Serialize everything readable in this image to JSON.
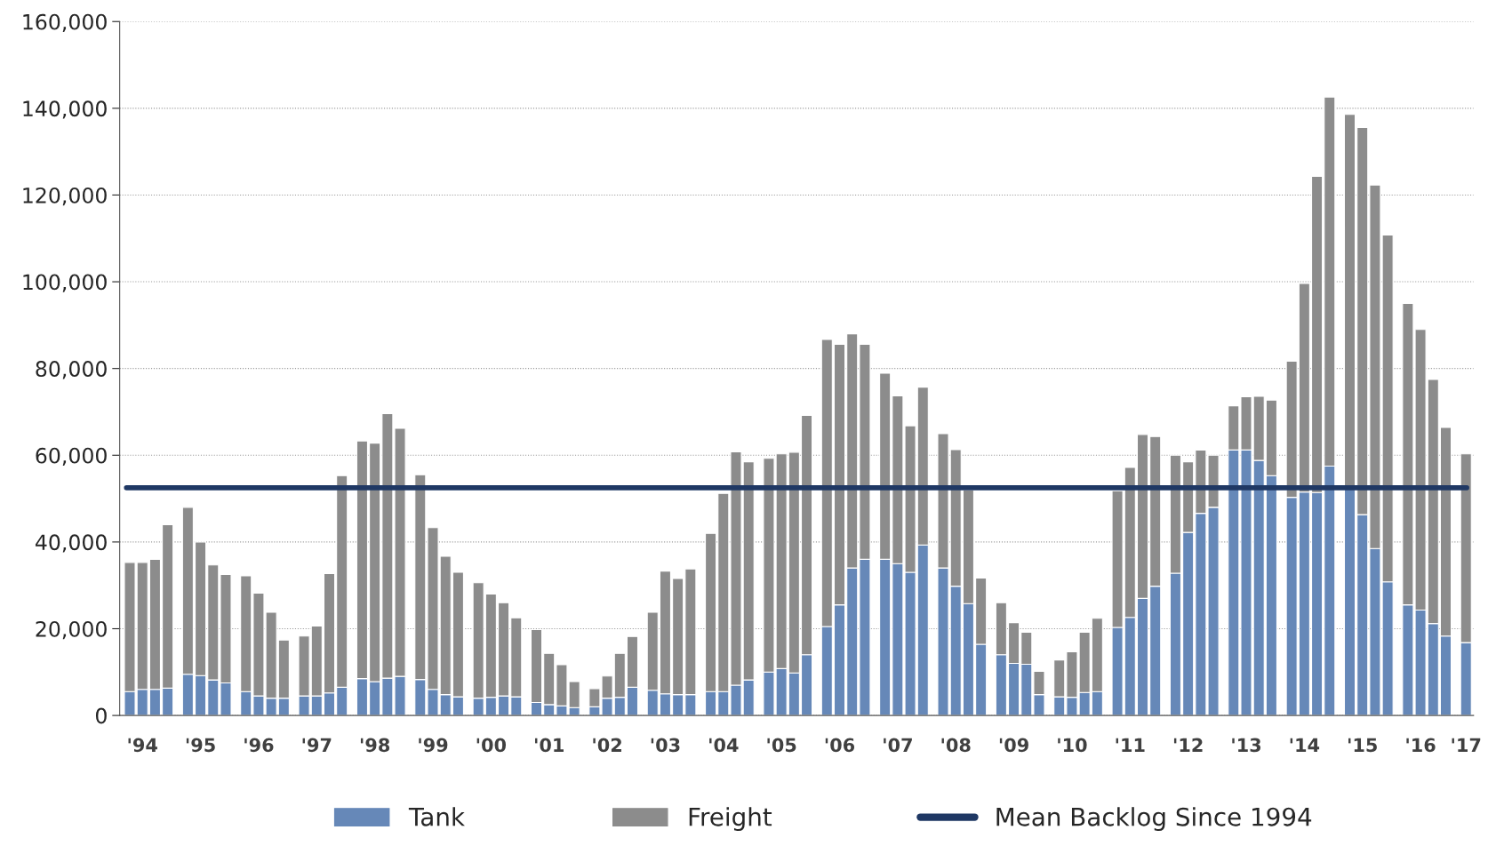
{
  "chart_data": {
    "type": "bar",
    "stacked": true,
    "categories": [
      null,
      "'94",
      null,
      null,
      null,
      "'95",
      null,
      null,
      null,
      "'96",
      null,
      null,
      null,
      "'97",
      null,
      null,
      null,
      "'98",
      null,
      null,
      null,
      "'99",
      null,
      null,
      null,
      "'00",
      null,
      null,
      null,
      "'01",
      null,
      null,
      null,
      "'02",
      null,
      null,
      null,
      "'03",
      null,
      null,
      null,
      "'04",
      null,
      null,
      null,
      "'05",
      null,
      null,
      null,
      "'06",
      null,
      null,
      null,
      "'07",
      null,
      null,
      null,
      "'08",
      null,
      null,
      null,
      "'09",
      null,
      null,
      null,
      "'10",
      null,
      null,
      null,
      "'11",
      null,
      null,
      null,
      "'12",
      null,
      null,
      null,
      "'13",
      null,
      null,
      null,
      "'14",
      null,
      null,
      null,
      "'15",
      null,
      null,
      null,
      "'16",
      null,
      null,
      "'17"
    ],
    "series": [
      {
        "name": "Tank",
        "color": "#6688b8",
        "values": [
          5500,
          6000,
          6000,
          6300,
          9500,
          9200,
          8200,
          7500,
          5500,
          4500,
          4000,
          4000,
          4500,
          4500,
          5200,
          6500,
          8500,
          7800,
          8600,
          9000,
          8300,
          6000,
          4800,
          4300,
          4000,
          4200,
          4500,
          4300,
          3000,
          2500,
          2200,
          1800,
          2000,
          4000,
          4200,
          6500,
          5800,
          5000,
          4800,
          4800,
          5500,
          5500,
          7000,
          8200,
          10000,
          10800,
          9800,
          14000,
          20500,
          25500,
          34000,
          36000,
          36000,
          35000,
          33000,
          39300,
          34000,
          29800,
          25800,
          16400,
          14000,
          12000,
          11800,
          4800,
          4300,
          4200,
          5300,
          5500,
          20300,
          22600,
          27000,
          29800,
          32800,
          42200,
          46600,
          48000,
          61200,
          61200,
          58800,
          55300,
          50300,
          51500,
          51400,
          57500,
          52500,
          46300,
          38500,
          30800,
          25500,
          24300,
          21200,
          18300,
          16800
        ]
      },
      {
        "name": "Freight",
        "color": "#8c8c8c",
        "values": [
          29800,
          29300,
          30000,
          37700,
          38500,
          30800,
          26500,
          25000,
          26700,
          23700,
          19800,
          13400,
          13800,
          16100,
          27500,
          48800,
          54800,
          55000,
          61000,
          57200,
          47200,
          37300,
          31900,
          28700,
          26600,
          23800,
          21500,
          18200,
          16800,
          11800,
          9500,
          6000,
          4200,
          5100,
          10100,
          11700,
          18000,
          28300,
          26800,
          29000,
          36500,
          45700,
          53800,
          50300,
          49300,
          49500,
          50900,
          55200,
          66200,
          60100,
          54000,
          49600,
          42900,
          38700,
          33800,
          36400,
          31000,
          31500,
          26200,
          15300,
          12000,
          9400,
          7400,
          5400,
          8500,
          10500,
          13900,
          16900,
          31500,
          34600,
          37800,
          34500,
          27200,
          16300,
          14600,
          12000,
          10200,
          12300,
          14800,
          17400,
          31400,
          48100,
          72900,
          85100,
          86100,
          89300,
          83800,
          80000,
          69500,
          64700,
          56300,
          48100,
          43500
        ]
      }
    ],
    "ref_lines": [
      {
        "axis": "y",
        "value": 52500,
        "label": "Mean Backlog Since 1994",
        "color": "#1f3864",
        "line_style": "solid"
      }
    ],
    "ylim": [
      0,
      160000
    ],
    "yticks": [
      0,
      {
        "value": 20000,
        "label": "20,000"
      },
      {
        "value": 40000,
        "label": "40,000"
      },
      {
        "value": 60000,
        "label": "60,000"
      },
      {
        "value": 80000,
        "label": "80,000"
      },
      {
        "value": 100000,
        "label": "100,000"
      },
      {
        "value": 120000,
        "label": "120,000"
      },
      {
        "value": 140000,
        "label": "140,000"
      },
      {
        "value": 160000,
        "label": "160,000"
      }
    ],
    "grid": "y",
    "legend": "bottom"
  }
}
